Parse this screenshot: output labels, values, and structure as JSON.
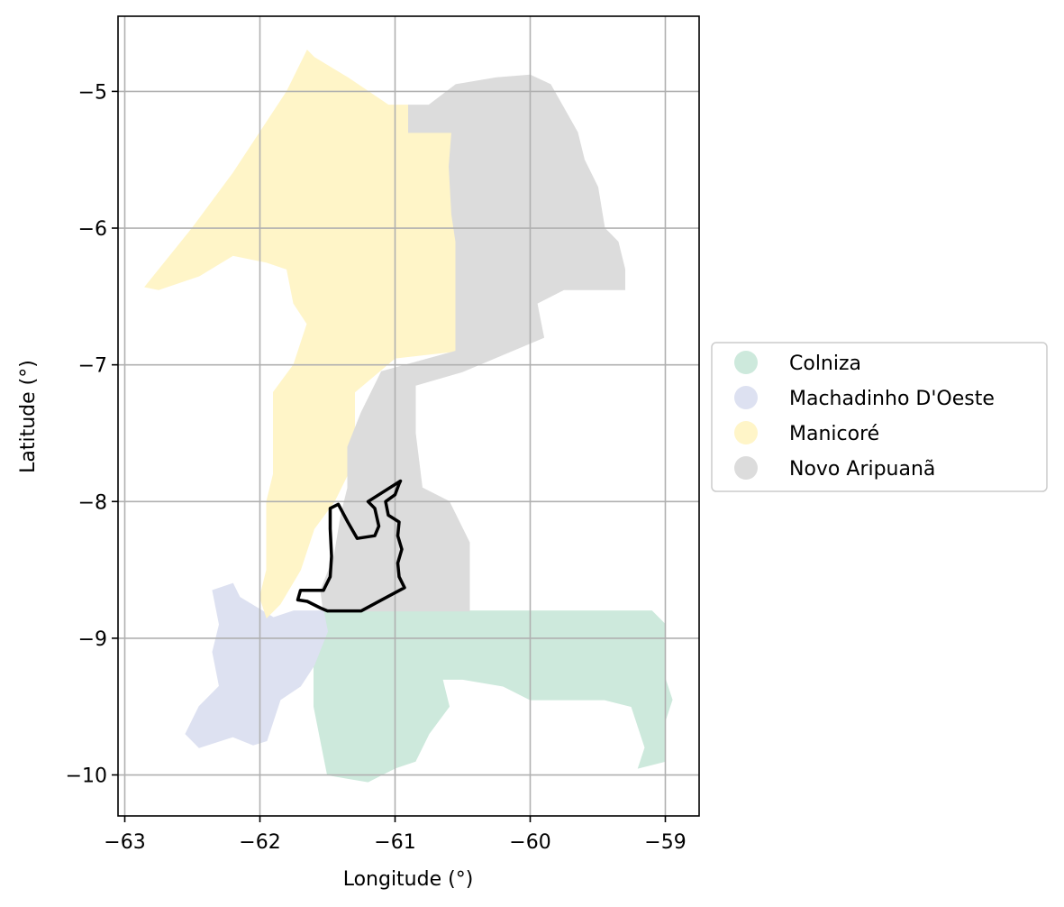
{
  "chart_data": {
    "type": "map",
    "xlabel": "Longitude (°)",
    "ylabel": "Latitude (°)",
    "xlim": [
      -63.05,
      -58.75
    ],
    "ylim": [
      -10.3,
      -4.45
    ],
    "grid": true,
    "x_ticks": [
      {
        "value": -63,
        "label": "−63"
      },
      {
        "value": -62,
        "label": "−62"
      },
      {
        "value": -61,
        "label": "−61"
      },
      {
        "value": -60,
        "label": "−60"
      },
      {
        "value": -59,
        "label": "−59"
      }
    ],
    "y_ticks": [
      {
        "value": -5,
        "label": "−5"
      },
      {
        "value": -6,
        "label": "−6"
      },
      {
        "value": -7,
        "label": "−7"
      },
      {
        "value": -8,
        "label": "−8"
      },
      {
        "value": -9,
        "label": "−9"
      },
      {
        "value": -10,
        "label": "−10"
      }
    ],
    "legend_position": "center-right outside",
    "regions": [
      {
        "name": "Colniza",
        "color": "#cde9dc",
        "polygon": [
          [
            -61.53,
            -8.8
          ],
          [
            -60.5,
            -8.8
          ],
          [
            -59.1,
            -8.8
          ],
          [
            -59.0,
            -8.9
          ],
          [
            -59.0,
            -9.1
          ],
          [
            -59.0,
            -9.3
          ],
          [
            -58.95,
            -9.45
          ],
          [
            -59.0,
            -9.6
          ],
          [
            -59.0,
            -9.9
          ],
          [
            -59.2,
            -9.95
          ],
          [
            -59.15,
            -9.8
          ],
          [
            -59.25,
            -9.5
          ],
          [
            -59.45,
            -9.45
          ],
          [
            -59.75,
            -9.45
          ],
          [
            -60.0,
            -9.45
          ],
          [
            -60.2,
            -9.35
          ],
          [
            -60.5,
            -9.3
          ],
          [
            -60.65,
            -9.3
          ],
          [
            -60.6,
            -9.5
          ],
          [
            -60.75,
            -9.7
          ],
          [
            -60.85,
            -9.9
          ],
          [
            -61.0,
            -9.95
          ],
          [
            -61.2,
            -10.05
          ],
          [
            -61.5,
            -10.0
          ],
          [
            -61.55,
            -9.75
          ],
          [
            -61.6,
            -9.5
          ],
          [
            -61.6,
            -9.2
          ],
          [
            -61.5,
            -8.95
          ]
        ]
      },
      {
        "name": "Machadinho D'Oeste",
        "color": "#dde1f1",
        "polygon": [
          [
            -62.35,
            -8.65
          ],
          [
            -62.2,
            -8.6
          ],
          [
            -62.15,
            -8.7
          ],
          [
            -61.9,
            -8.85
          ],
          [
            -61.75,
            -8.8
          ],
          [
            -61.53,
            -8.8
          ],
          [
            -61.5,
            -8.95
          ],
          [
            -61.6,
            -9.2
          ],
          [
            -61.7,
            -9.35
          ],
          [
            -61.85,
            -9.45
          ],
          [
            -61.9,
            -9.6
          ],
          [
            -61.95,
            -9.75
          ],
          [
            -62.05,
            -9.78
          ],
          [
            -62.2,
            -9.72
          ],
          [
            -62.45,
            -9.8
          ],
          [
            -62.55,
            -9.7
          ],
          [
            -62.45,
            -9.5
          ],
          [
            -62.3,
            -9.35
          ],
          [
            -62.35,
            -9.1
          ],
          [
            -62.3,
            -8.9
          ]
        ]
      },
      {
        "name": "Manicoré",
        "color": "#fff5c8",
        "polygon": [
          [
            -61.65,
            -4.7
          ],
          [
            -61.6,
            -4.75
          ],
          [
            -61.35,
            -4.9
          ],
          [
            -61.05,
            -5.1
          ],
          [
            -60.9,
            -5.1
          ],
          [
            -60.9,
            -5.3
          ],
          [
            -60.58,
            -5.3
          ],
          [
            -60.6,
            -5.55
          ],
          [
            -60.58,
            -5.9
          ],
          [
            -60.55,
            -6.1
          ],
          [
            -60.55,
            -6.9
          ],
          [
            -61.0,
            -6.95
          ],
          [
            -61.3,
            -7.2
          ],
          [
            -61.3,
            -7.6
          ],
          [
            -61.35,
            -7.8
          ],
          [
            -61.45,
            -8.0
          ],
          [
            -61.6,
            -8.2
          ],
          [
            -61.7,
            -8.5
          ],
          [
            -61.85,
            -8.75
          ],
          [
            -61.95,
            -8.85
          ],
          [
            -62.0,
            -8.7
          ],
          [
            -61.95,
            -8.5
          ],
          [
            -61.95,
            -8.0
          ],
          [
            -61.9,
            -7.8
          ],
          [
            -61.9,
            -7.2
          ],
          [
            -61.75,
            -7.0
          ],
          [
            -61.65,
            -6.7
          ],
          [
            -61.75,
            -6.55
          ],
          [
            -61.8,
            -6.3
          ],
          [
            -61.95,
            -6.25
          ],
          [
            -62.2,
            -6.2
          ],
          [
            -62.45,
            -6.35
          ],
          [
            -62.75,
            -6.45
          ],
          [
            -62.85,
            -6.43
          ],
          [
            -62.5,
            -6.0
          ],
          [
            -62.2,
            -5.6
          ],
          [
            -62.0,
            -5.3
          ],
          [
            -61.8,
            -5.0
          ]
        ]
      },
      {
        "name": "Novo Aripuanã",
        "color": "#dcdcdc",
        "polygon": [
          [
            -60.75,
            -5.1
          ],
          [
            -60.55,
            -4.95
          ],
          [
            -60.25,
            -4.9
          ],
          [
            -60.0,
            -4.88
          ],
          [
            -59.85,
            -4.95
          ],
          [
            -59.65,
            -5.3
          ],
          [
            -59.6,
            -5.5
          ],
          [
            -59.5,
            -5.7
          ],
          [
            -59.45,
            -6.0
          ],
          [
            -59.35,
            -6.1
          ],
          [
            -59.3,
            -6.3
          ],
          [
            -59.3,
            -6.45
          ],
          [
            -59.75,
            -6.45
          ],
          [
            -59.95,
            -6.55
          ],
          [
            -59.9,
            -6.8
          ],
          [
            -60.5,
            -7.05
          ],
          [
            -60.85,
            -7.15
          ],
          [
            -60.85,
            -7.5
          ],
          [
            -60.8,
            -7.9
          ],
          [
            -60.6,
            -8.0
          ],
          [
            -60.45,
            -8.3
          ],
          [
            -60.45,
            -8.6
          ],
          [
            -60.45,
            -8.8
          ],
          [
            -61.53,
            -8.8
          ],
          [
            -61.55,
            -8.65
          ],
          [
            -61.45,
            -8.4
          ],
          [
            -61.4,
            -8.1
          ],
          [
            -61.35,
            -7.9
          ],
          [
            -61.35,
            -7.6
          ],
          [
            -61.25,
            -7.35
          ],
          [
            -61.1,
            -7.05
          ],
          [
            -60.55,
            -6.9
          ],
          [
            -60.55,
            -6.1
          ],
          [
            -60.58,
            -5.9
          ],
          [
            -60.6,
            -5.55
          ],
          [
            -60.58,
            -5.3
          ],
          [
            -60.9,
            -5.3
          ],
          [
            -60.9,
            -5.1
          ]
        ]
      }
    ],
    "outline": {
      "color": "#000000",
      "polygon": [
        [
          -61.65,
          -8.73
        ],
        [
          -61.55,
          -8.78
        ],
        [
          -61.5,
          -8.8
        ],
        [
          -61.25,
          -8.8
        ],
        [
          -61.1,
          -8.72
        ],
        [
          -60.93,
          -8.63
        ],
        [
          -60.97,
          -8.55
        ],
        [
          -60.98,
          -8.45
        ],
        [
          -60.95,
          -8.35
        ],
        [
          -60.98,
          -8.25
        ],
        [
          -60.97,
          -8.15
        ],
        [
          -61.05,
          -8.1
        ],
        [
          -61.07,
          -8.0
        ],
        [
          -61.0,
          -7.95
        ],
        [
          -60.97,
          -7.87
        ],
        [
          -60.96,
          -7.85
        ],
        [
          -61.2,
          -8.0
        ],
        [
          -61.15,
          -8.05
        ],
        [
          -61.12,
          -8.18
        ],
        [
          -61.15,
          -8.25
        ],
        [
          -61.28,
          -8.27
        ],
        [
          -61.35,
          -8.15
        ],
        [
          -61.42,
          -8.02
        ],
        [
          -61.48,
          -8.05
        ],
        [
          -61.48,
          -8.2
        ],
        [
          -61.47,
          -8.4
        ],
        [
          -61.48,
          -8.55
        ],
        [
          -61.53,
          -8.65
        ],
        [
          -61.7,
          -8.65
        ],
        [
          -61.72,
          -8.72
        ]
      ]
    },
    "legend": [
      {
        "label": "Colniza",
        "color": "#cde9dc"
      },
      {
        "label": "Machadinho D'Oeste",
        "color": "#dde1f1"
      },
      {
        "label": "Manicoré",
        "color": "#fff5c8"
      },
      {
        "label": "Novo Aripuanã",
        "color": "#dcdcdc"
      }
    ]
  }
}
